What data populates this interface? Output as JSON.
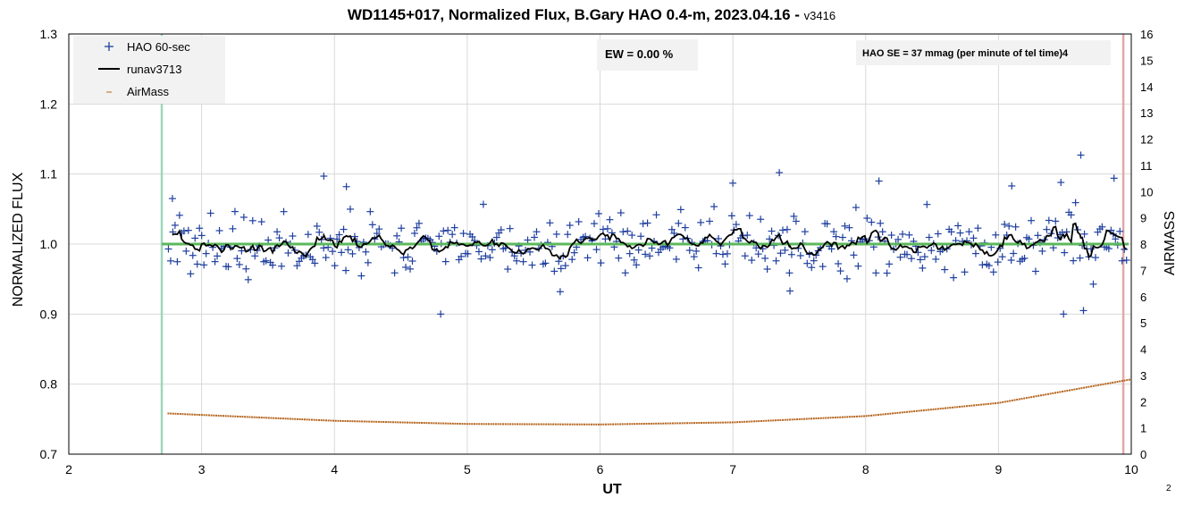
{
  "chart_data": {
    "type": "scatter",
    "title": "WD1145+017, Normalized Flux, B.Gary HAO 0.4-m, 2023.04.16 - ",
    "title_version": "v3416",
    "xlabel": "UT",
    "ylabel": "NORMALIZED FLUX",
    "y2label": "AIRMASS",
    "xlim": [
      2,
      10
    ],
    "ylim": [
      0.7,
      1.3
    ],
    "y2lim": [
      0,
      16
    ],
    "x_ticks": [
      "2",
      "3",
      "4",
      "5",
      "6",
      "7",
      "8",
      "9",
      "10"
    ],
    "y_ticks": [
      "0.7",
      "0.8",
      "0.9",
      "1.0",
      "1.1",
      "1.2",
      "1.3"
    ],
    "y2_ticks": [
      "0",
      "1",
      "2",
      "3",
      "4",
      "5",
      "6",
      "7",
      "8",
      "9",
      "10",
      "11",
      "12",
      "13",
      "14",
      "15",
      "16"
    ],
    "grid": true,
    "legend_position": "top-left",
    "series": [
      {
        "name": "HAO 60-sec",
        "color": "#1f3f9f",
        "marker": "plus"
      },
      {
        "name": "runav3713",
        "color": "#000000",
        "marker": "line"
      },
      {
        "name": "AirMass",
        "color": "#b5651d",
        "marker": "dot",
        "axis": "right"
      }
    ],
    "model_line": {
      "y": 1.0,
      "x_start": 2.7,
      "x_end": 9.98,
      "color": "#5cb85c"
    },
    "vertical_lines": [
      {
        "x": 2.7,
        "color": "#9fd6bb"
      },
      {
        "x": 9.94,
        "color": "#e0a8a8"
      }
    ],
    "flux_outliers": [
      {
        "x": 2.78,
        "y": 1.065
      },
      {
        "x": 3.92,
        "y": 1.097
      },
      {
        "x": 4.09,
        "y": 1.082
      },
      {
        "x": 4.8,
        "y": 0.9
      },
      {
        "x": 7.0,
        "y": 1.087
      },
      {
        "x": 7.35,
        "y": 1.102
      },
      {
        "x": 8.1,
        "y": 1.09
      },
      {
        "x": 9.1,
        "y": 1.083
      },
      {
        "x": 9.47,
        "y": 1.088
      },
      {
        "x": 9.62,
        "y": 1.127
      },
      {
        "x": 9.87,
        "y": 1.094
      },
      {
        "x": 9.49,
        "y": 0.9
      },
      {
        "x": 9.64,
        "y": 0.905
      },
      {
        "x": 7.43,
        "y": 0.933
      },
      {
        "x": 5.7,
        "y": 0.932
      }
    ],
    "airmass_model": {
      "x_start": 2.75,
      "x_end": 10.0,
      "values_at": [
        {
          "x": 2.75,
          "airmass": 1.55
        },
        {
          "x": 4.0,
          "airmass": 1.27
        },
        {
          "x": 5.0,
          "airmass": 1.15
        },
        {
          "x": 6.0,
          "airmass": 1.13
        },
        {
          "x": 7.0,
          "airmass": 1.21
        },
        {
          "x": 8.0,
          "airmass": 1.45
        },
        {
          "x": 9.0,
          "airmass": 1.95
        },
        {
          "x": 10.0,
          "airmass": 2.85
        }
      ]
    }
  },
  "legend": {
    "items": [
      "HAO 60-sec",
      "runav3713",
      "AirMass"
    ]
  },
  "annotations": {
    "ew": "EW = 0.00 %",
    "se": "HAO SE =  37 mmag (per minute of tel time)4"
  },
  "page_number": "2"
}
